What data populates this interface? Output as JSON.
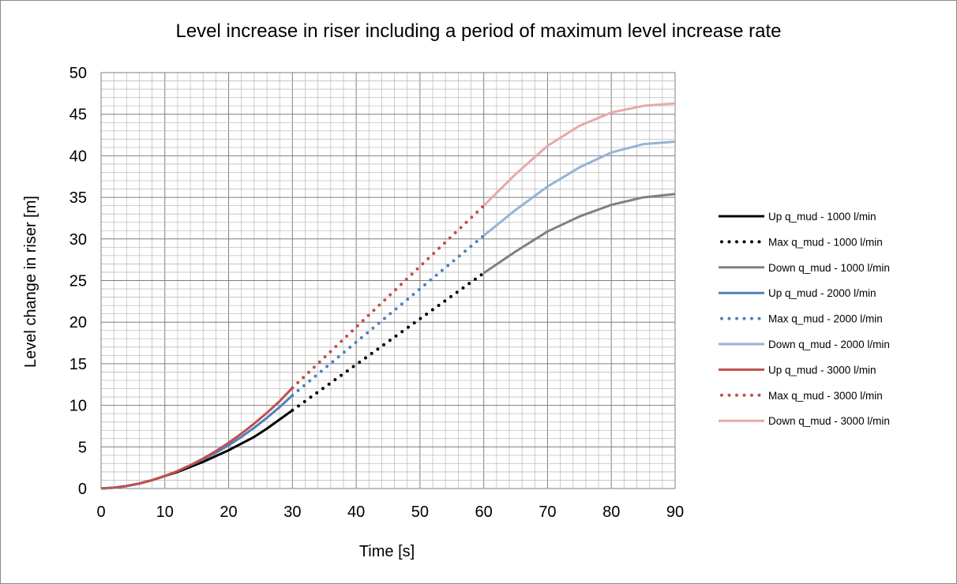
{
  "chart_data": {
    "type": "line",
    "title": "Level increase in riser including a period of maximum level increase rate",
    "xlabel": "Time [s]",
    "ylabel": "Level change in riser [m]",
    "xlim": [
      0,
      90
    ],
    "ylim": [
      0,
      50
    ],
    "x_ticks": [
      "0",
      "10",
      "20",
      "30",
      "40",
      "50",
      "60",
      "70",
      "80",
      "90"
    ],
    "y_ticks": [
      "0",
      "5",
      "10",
      "15",
      "20",
      "25",
      "30",
      "35",
      "40",
      "45",
      "50"
    ],
    "grid": "major and minor",
    "legend_position": "right",
    "series": [
      {
        "name": "Up q_mud - 1000 l/min",
        "color": "#000000",
        "dash": "solid",
        "x": [
          0,
          2,
          4,
          6,
          8,
          10,
          12,
          14,
          16,
          18,
          20,
          22,
          24,
          26,
          28,
          30
        ],
        "y": [
          0,
          0.1,
          0.3,
          0.6,
          1.0,
          1.5,
          2.0,
          2.6,
          3.2,
          3.9,
          4.6,
          5.4,
          6.2,
          7.2,
          8.3,
          9.4
        ]
      },
      {
        "name": "Max q_mud - 1000 l/min",
        "color": "#000000",
        "dash": "dotted",
        "x": [
          30,
          40,
          50,
          60
        ],
        "y": [
          9.4,
          14.9,
          20.4,
          25.9
        ]
      },
      {
        "name": "Down q_mud - 1000 l/min",
        "color": "#808080",
        "dash": "solid",
        "x": [
          60,
          65,
          70,
          75,
          80,
          85,
          90
        ],
        "y": [
          25.9,
          28.5,
          30.9,
          32.7,
          34.1,
          35.0,
          35.4
        ]
      },
      {
        "name": "Up q_mud - 2000 l/min",
        "color": "#4f81bd",
        "dash": "solid",
        "x": [
          0,
          2,
          4,
          6,
          8,
          10,
          12,
          14,
          16,
          18,
          20,
          22,
          24,
          26,
          28,
          30
        ],
        "y": [
          0,
          0.1,
          0.3,
          0.6,
          1.0,
          1.5,
          2.1,
          2.8,
          3.5,
          4.3,
          5.2,
          6.2,
          7.3,
          8.5,
          9.8,
          11.2
        ]
      },
      {
        "name": "Max q_mud - 2000 l/min",
        "color": "#4f81bd",
        "dash": "dotted",
        "x": [
          30,
          40,
          50,
          60
        ],
        "y": [
          11.2,
          17.6,
          24.0,
          30.4
        ]
      },
      {
        "name": "Down q_mud - 2000 l/min",
        "color": "#95b3d7",
        "dash": "solid",
        "x": [
          60,
          65,
          70,
          75,
          80,
          85,
          90
        ],
        "y": [
          30.4,
          33.5,
          36.3,
          38.6,
          40.4,
          41.4,
          41.7
        ]
      },
      {
        "name": "Up q_mud - 3000 l/min",
        "color": "#c0504d",
        "dash": "solid",
        "x": [
          0,
          2,
          4,
          6,
          8,
          10,
          12,
          14,
          16,
          18,
          20,
          22,
          24,
          26,
          28,
          30
        ],
        "y": [
          0,
          0.1,
          0.3,
          0.6,
          1.0,
          1.5,
          2.1,
          2.8,
          3.6,
          4.5,
          5.5,
          6.6,
          7.8,
          9.1,
          10.5,
          12.1
        ]
      },
      {
        "name": "Max q_mud - 3000 l/min",
        "color": "#c0504d",
        "dash": "dotted",
        "x": [
          30,
          40,
          50,
          60
        ],
        "y": [
          12.1,
          19.4,
          26.7,
          34.0
        ]
      },
      {
        "name": "Down q_mud - 3000 l/min",
        "color": "#e6a9a8",
        "dash": "solid",
        "x": [
          60,
          65,
          70,
          75,
          80,
          85,
          90
        ],
        "y": [
          34.0,
          37.8,
          41.2,
          43.6,
          45.2,
          46.0,
          46.3
        ]
      }
    ]
  }
}
